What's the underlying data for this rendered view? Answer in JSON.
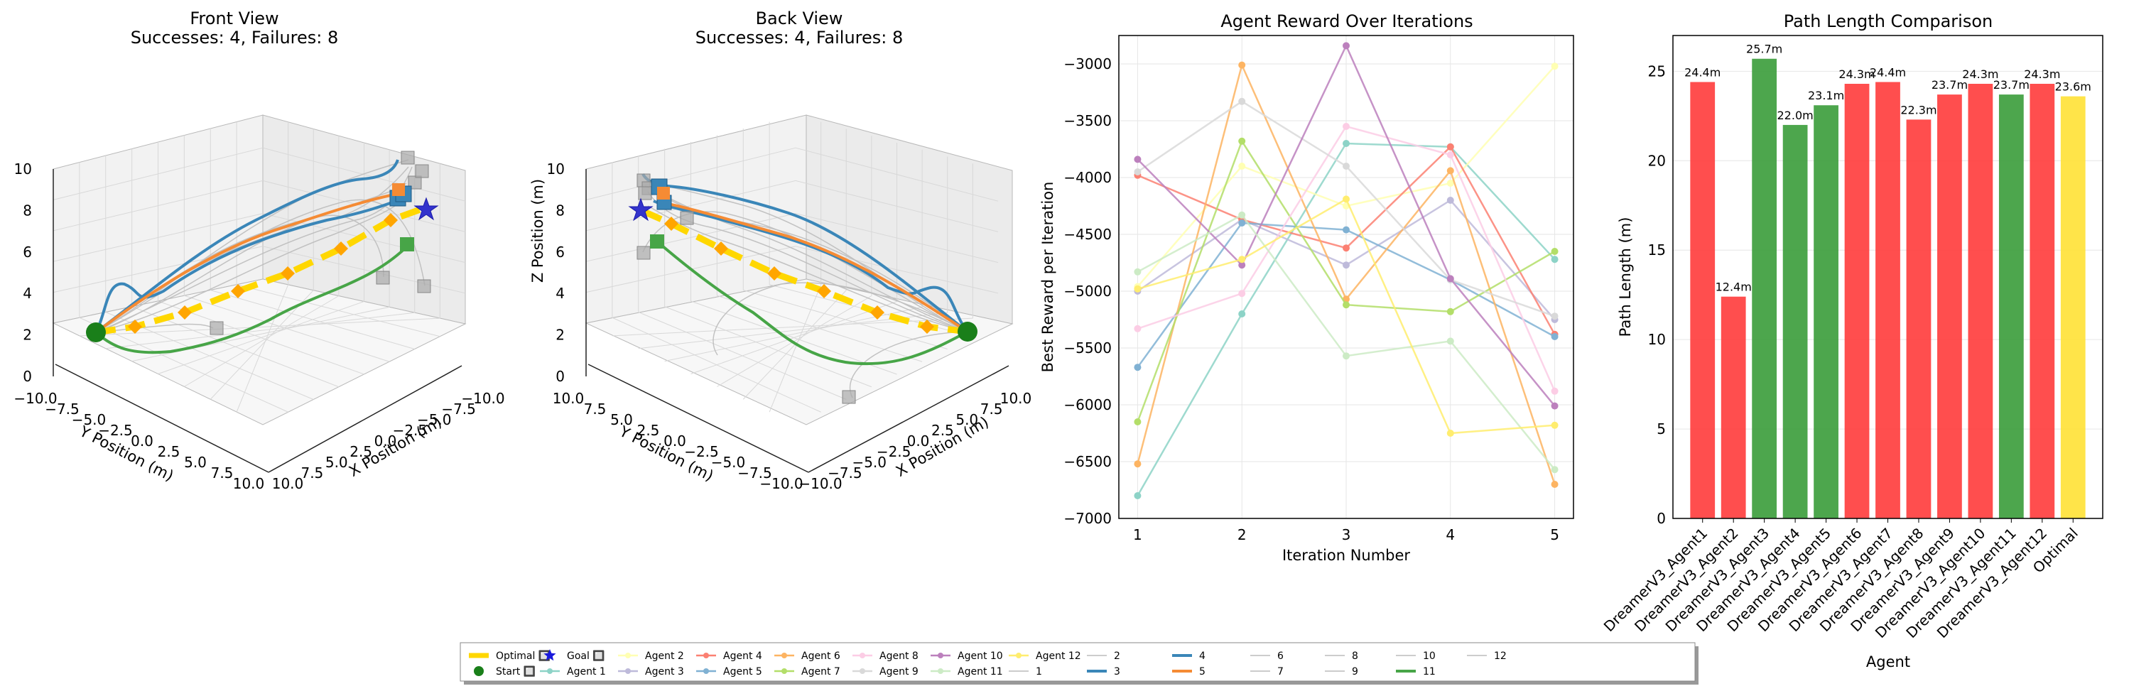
{
  "chart_data": [
    {
      "type": "scatter",
      "panel": "3d-front",
      "title": "Front View",
      "subtitle": "Successes: 4, Failures: 8",
      "xlabel": "X Position (m)",
      "ylabel": "Y Position (m)",
      "zlabel": "",
      "xticks": [
        "10.0",
        "7.5",
        "5.0",
        "2.5",
        "0.0",
        "−2.5",
        "−5.0",
        "−7.5",
        "−10.0"
      ],
      "yticks": [
        "−10.0",
        "−7.5",
        "−5.0",
        "−2.5",
        "0.0",
        "2.5",
        "5.0",
        "7.5",
        "10.0"
      ],
      "zticks": [
        "0",
        "2",
        "4",
        "6",
        "8",
        "10"
      ]
    },
    {
      "type": "scatter",
      "panel": "3d-back",
      "title": "Back View",
      "subtitle": "Successes: 4, Failures: 8",
      "xlabel": "X Position (m)",
      "ylabel": "Y Position (m)",
      "zlabel": "Z Position (m)",
      "xticks": [
        "−10.0",
        "−7.5",
        "−5.0",
        "−2.5",
        "0.0",
        "2.5",
        "5.0",
        "7.5",
        "10.0"
      ],
      "yticks": [
        "10.0",
        "7.5",
        "5.0",
        "2.5",
        "0.0",
        "−2.5",
        "−5.0",
        "−7.5",
        "−10.0"
      ],
      "zticks": [
        "0",
        "2",
        "4",
        "6",
        "8",
        "10"
      ]
    },
    {
      "type": "line",
      "title": "Agent Reward Over Iterations",
      "xlabel": "Iteration Number",
      "ylabel": "Best Reward per Iteration",
      "x": [
        1,
        2,
        3,
        4,
        5
      ],
      "ylim": [
        -7000,
        -2750
      ],
      "yticks": [
        -7000,
        -6500,
        -6000,
        -5500,
        -5000,
        -4500,
        -4000,
        -3500,
        -3000
      ],
      "grid": true,
      "series": [
        {
          "name": "Agent 1",
          "color": "#8dd3c7",
          "values": [
            -6800,
            -5200,
            -3700,
            -3730,
            -4720
          ]
        },
        {
          "name": "Agent 2",
          "color": "#ffffb3",
          "values": [
            -4960,
            -3900,
            -4250,
            -4050,
            -3020
          ]
        },
        {
          "name": "Agent 3",
          "color": "#bebada",
          "values": [
            -5000,
            -4370,
            -4770,
            -4200,
            -5250
          ]
        },
        {
          "name": "Agent 4",
          "color": "#fb8072",
          "values": [
            -3980,
            -4370,
            -4620,
            -3730,
            -5380
          ]
        },
        {
          "name": "Agent 5",
          "color": "#80b1d3",
          "values": [
            -5670,
            -4400,
            -4460,
            -4900,
            -5400
          ]
        },
        {
          "name": "Agent 6",
          "color": "#fdb462",
          "values": [
            -6520,
            -3010,
            -5070,
            -3940,
            -6700
          ]
        },
        {
          "name": "Agent 7",
          "color": "#b3de69",
          "values": [
            -6150,
            -3680,
            -5120,
            -5180,
            -4650
          ]
        },
        {
          "name": "Agent 8",
          "color": "#fccde5",
          "values": [
            -5330,
            -5020,
            -3550,
            -3800,
            -5880
          ]
        },
        {
          "name": "Agent 9",
          "color": "#d9d9d9",
          "values": [
            -3950,
            -3330,
            -3900,
            -4900,
            -5220
          ]
        },
        {
          "name": "Agent 10",
          "color": "#bc80bd",
          "values": [
            -3840,
            -4770,
            -2840,
            -4890,
            -6010
          ]
        },
        {
          "name": "Agent 11",
          "color": "#ccebc5",
          "values": [
            -4830,
            -4330,
            -5570,
            -5440,
            -6570
          ]
        },
        {
          "name": "Agent 12",
          "color": "#ffed6f",
          "values": [
            -4980,
            -4720,
            -4190,
            -6250,
            -6180
          ]
        }
      ]
    },
    {
      "type": "bar",
      "title": "Path Length Comparison",
      "xlabel": "Agent",
      "ylabel": "Path Length (m)",
      "ylim": [
        0,
        27
      ],
      "yticks": [
        0,
        5,
        10,
        15,
        20,
        25
      ],
      "categories": [
        "DreamerV3_Agent1",
        "DreamerV3_Agent2",
        "DreamerV3_Agent3",
        "DreamerV3_Agent4",
        "DreamerV3_Agent5",
        "DreamerV3_Agent6",
        "DreamerV3_Agent7",
        "DreamerV3_Agent8",
        "DreamerV3_Agent9",
        "DreamerV3_Agent10",
        "DreamerV3_Agent11",
        "DreamerV3_Agent12",
        "Optimal"
      ],
      "values": [
        24.4,
        12.4,
        25.7,
        22.0,
        23.1,
        24.3,
        24.4,
        22.3,
        23.7,
        24.3,
        23.7,
        24.3,
        23.6
      ],
      "labels": [
        "24.4m",
        "12.4m",
        "25.7m",
        "22.0m",
        "23.1m",
        "24.3m",
        "24.4m",
        "22.3m",
        "23.7m",
        "24.3m",
        "23.7m",
        "24.3m",
        "23.6m"
      ],
      "colors": [
        "#ff3b3b",
        "#ff3b3b",
        "#3a9c3a",
        "#3a9c3a",
        "#3a9c3a",
        "#ff3b3b",
        "#ff3b3b",
        "#ff3b3b",
        "#ff3b3b",
        "#ff3b3b",
        "#3a9c3a",
        "#ff3b3b",
        "#ffe135"
      ]
    }
  ],
  "legend": {
    "items": [
      {
        "label": "Optimal 🔲",
        "color": "#ffd700",
        "marker": "thick-line"
      },
      {
        "label": "Start 🔲",
        "color": "#1a7f1a",
        "marker": "circle"
      },
      {
        "label": "Goal 🔲",
        "color": "#1a1adc",
        "marker": "star"
      },
      {
        "label": "Agent 1",
        "color": "#8dd3c7",
        "marker": "line-dot"
      },
      {
        "label": "Agent 2",
        "color": "#ffffb3",
        "marker": "line-dot"
      },
      {
        "label": "Agent 3",
        "color": "#bebada",
        "marker": "line-dot"
      },
      {
        "label": "Agent 4",
        "color": "#fb8072",
        "marker": "line-dot"
      },
      {
        "label": "Agent 5",
        "color": "#80b1d3",
        "marker": "line-dot"
      },
      {
        "label": "Agent 6",
        "color": "#fdb462",
        "marker": "line-dot"
      },
      {
        "label": "Agent 7",
        "color": "#b3de69",
        "marker": "line-dot"
      },
      {
        "label": "Agent 8",
        "color": "#fccde5",
        "marker": "line-dot"
      },
      {
        "label": "Agent 9",
        "color": "#d9d9d9",
        "marker": "line-dot"
      },
      {
        "label": "Agent 10",
        "color": "#bc80bd",
        "marker": "line-dot"
      },
      {
        "label": "Agent 11",
        "color": "#ccebc5",
        "marker": "line-dot"
      },
      {
        "label": "Agent 12",
        "color": "#ffed6f",
        "marker": "line-dot"
      },
      {
        "label": "1",
        "color": "#bbbbbb",
        "marker": "line"
      },
      {
        "label": "2",
        "color": "#bbbbbb",
        "marker": "line"
      },
      {
        "label": "3",
        "color": "#3a86b8",
        "marker": "bold-line"
      },
      {
        "label": "4",
        "color": "#3a86b8",
        "marker": "bold-line"
      },
      {
        "label": "5",
        "color": "#f58b34",
        "marker": "bold-line"
      },
      {
        "label": "6",
        "color": "#bbbbbb",
        "marker": "line"
      },
      {
        "label": "7",
        "color": "#bbbbbb",
        "marker": "line"
      },
      {
        "label": "8",
        "color": "#bbbbbb",
        "marker": "line"
      },
      {
        "label": "9",
        "color": "#bbbbbb",
        "marker": "line"
      },
      {
        "label": "10",
        "color": "#bbbbbb",
        "marker": "line"
      },
      {
        "label": "11",
        "color": "#47a547",
        "marker": "bold-line"
      },
      {
        "label": "12",
        "color": "#bbbbbb",
        "marker": "line"
      }
    ]
  }
}
